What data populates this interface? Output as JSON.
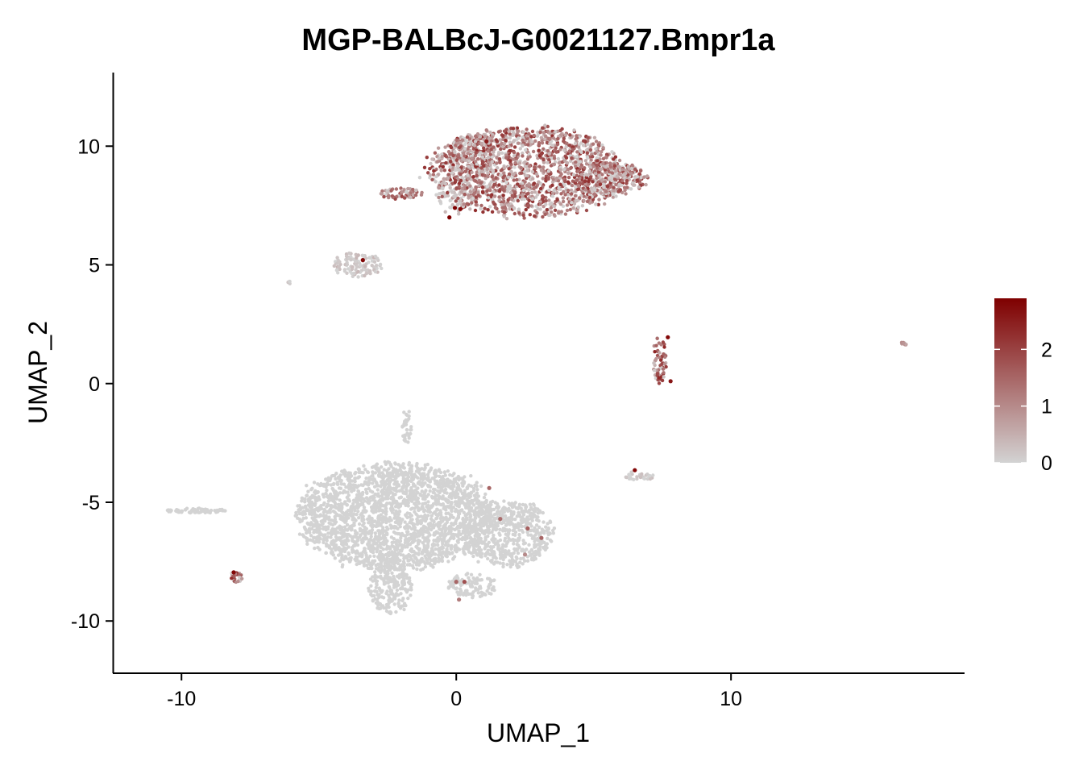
{
  "chart_data": {
    "type": "scatter",
    "title": "MGP-BALBcJ-G0021127.Bmpr1a",
    "xlabel": "UMAP_1",
    "ylabel": "UMAP_2",
    "xlim": [
      -12.5,
      18.5
    ],
    "ylim": [
      -12.2,
      13.1
    ],
    "xticks": [
      -10,
      0,
      10
    ],
    "yticks": [
      -10,
      -5,
      0,
      5,
      10
    ],
    "grid": false,
    "colorscale": {
      "low": "#d3d3d3",
      "high": "#7f0000",
      "min": 0,
      "max": 2.9
    },
    "legend": {
      "position": "right",
      "ticks": [
        0,
        1,
        2
      ]
    },
    "clusters": [
      {
        "kind": "ellipse",
        "cx": 2.6,
        "cy": 8.9,
        "rx": 3.6,
        "ry": 1.9,
        "n": 1500,
        "expr": [
          0.2,
          2.3
        ]
      },
      {
        "kind": "ellipse",
        "cx": 5.6,
        "cy": 8.6,
        "rx": 1.4,
        "ry": 0.7,
        "n": 260,
        "expr": [
          0.2,
          2.3
        ]
      },
      {
        "kind": "ellipse",
        "cx": 0.6,
        "cy": 9.6,
        "rx": 0.9,
        "ry": 0.9,
        "n": 200,
        "expr": [
          0.0,
          1.8
        ]
      },
      {
        "kind": "ellipse",
        "cx": -0.1,
        "cy": 8.0,
        "rx": 0.7,
        "ry": 0.8,
        "n": 70,
        "expr": [
          0.0,
          0.4
        ]
      },
      {
        "kind": "ellipse",
        "cx": -2.0,
        "cy": 8.0,
        "rx": 0.8,
        "ry": 0.25,
        "n": 60,
        "expr": [
          0.3,
          2.0
        ]
      },
      {
        "kind": "ellipse",
        "cx": -3.6,
        "cy": 5.0,
        "rx": 0.9,
        "ry": 0.5,
        "n": 110,
        "expr": [
          0.0,
          0.4
        ]
      },
      {
        "kind": "ellipse",
        "cx": -6.1,
        "cy": 4.25,
        "rx": 0.1,
        "ry": 0.06,
        "n": 6,
        "expr": [
          0.0,
          0.2
        ]
      },
      {
        "kind": "ellipse",
        "cx": 7.4,
        "cy": 1.0,
        "rx": 0.25,
        "ry": 1.0,
        "n": 60,
        "expr": [
          0.4,
          2.5
        ]
      },
      {
        "kind": "ellipse",
        "cx": 16.3,
        "cy": 1.7,
        "rx": 0.12,
        "ry": 0.08,
        "n": 8,
        "expr": [
          0.8,
          1.4
        ]
      },
      {
        "kind": "ellipse",
        "cx": 6.6,
        "cy": -3.9,
        "rx": 0.6,
        "ry": 0.2,
        "n": 28,
        "expr": [
          0.0,
          0.3
        ]
      },
      {
        "kind": "ellipse",
        "cx": -2.2,
        "cy": -5.6,
        "rx": 3.6,
        "ry": 2.2,
        "n": 2400,
        "expr": [
          0.0,
          0.0
        ]
      },
      {
        "kind": "ellipse",
        "cx": 1.8,
        "cy": -6.3,
        "rx": 1.7,
        "ry": 1.4,
        "n": 600,
        "expr": [
          0.0,
          0.0
        ]
      },
      {
        "kind": "ellipse",
        "cx": -2.4,
        "cy": -8.6,
        "rx": 0.8,
        "ry": 1.1,
        "n": 220,
        "expr": [
          0.0,
          0.0
        ]
      },
      {
        "kind": "ellipse",
        "cx": 0.6,
        "cy": -8.5,
        "rx": 0.9,
        "ry": 0.5,
        "n": 110,
        "expr": [
          0.0,
          0.0
        ]
      },
      {
        "kind": "ellipse",
        "cx": -1.8,
        "cy": -1.8,
        "rx": 0.18,
        "ry": 0.8,
        "n": 30,
        "expr": [
          0.0,
          0.0
        ]
      },
      {
        "kind": "ellipse",
        "cx": -9.5,
        "cy": -5.35,
        "rx": 1.1,
        "ry": 0.1,
        "n": 70,
        "expr": [
          0.0,
          0.0
        ]
      },
      {
        "kind": "ellipse",
        "cx": -8.0,
        "cy": -8.15,
        "rx": 0.25,
        "ry": 0.22,
        "n": 30,
        "expr": [
          0.2,
          2.3
        ]
      }
    ],
    "highlight_points": [
      {
        "x": -0.25,
        "y": 7.0,
        "v": 2.9
      },
      {
        "x": -0.05,
        "y": 7.4,
        "v": 2.9
      },
      {
        "x": 0.15,
        "y": 7.35,
        "v": 2.8
      },
      {
        "x": -3.4,
        "y": 5.2,
        "v": 2.8
      },
      {
        "x": 7.7,
        "y": 1.95,
        "v": 2.8
      },
      {
        "x": 7.8,
        "y": 0.1,
        "v": 2.6
      },
      {
        "x": 6.5,
        "y": -3.65,
        "v": 2.8
      },
      {
        "x": -8.1,
        "y": -7.95,
        "v": 2.8
      },
      {
        "x": 1.1,
        "y": 10.2,
        "v": 2.5
      },
      {
        "x": 1.2,
        "y": -4.4,
        "v": 1.5
      },
      {
        "x": 2.5,
        "y": -7.2,
        "v": 1.0
      },
      {
        "x": 2.6,
        "y": -6.1,
        "v": 1.6
      },
      {
        "x": 3.1,
        "y": -6.5,
        "v": 1.5
      },
      {
        "x": 0.0,
        "y": -8.35,
        "v": 1.5
      },
      {
        "x": 0.3,
        "y": -8.35,
        "v": 1.8
      },
      {
        "x": 0.1,
        "y": -9.1,
        "v": 1.2
      },
      {
        "x": 1.6,
        "y": -5.7,
        "v": 1.4
      }
    ]
  }
}
